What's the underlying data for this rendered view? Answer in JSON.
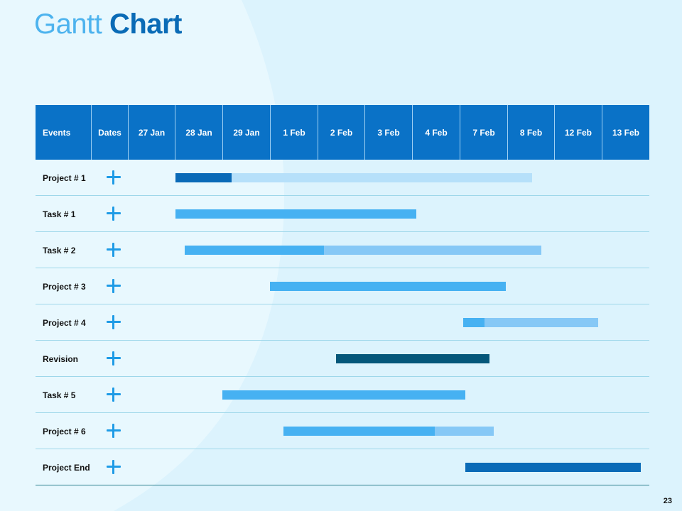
{
  "title": {
    "light": "Gantt",
    "bold": "Chart"
  },
  "page_number": "23",
  "colors": {
    "background": "#dcf3fd",
    "header": "#0a72c7",
    "plus_icon": "#1e9be6"
  },
  "chart_data": {
    "type": "gantt",
    "columns": [
      "Events",
      "Dates",
      "27 Jan",
      "28 Jan",
      "29 Jan",
      "1 Feb",
      "2 Feb",
      "3 Feb",
      "4 Feb",
      "7 Feb",
      "8 Feb",
      "12 Feb",
      "13 Feb"
    ],
    "date_columns": [
      "27 Jan",
      "28 Jan",
      "29 Jan",
      "1 Feb",
      "2 Feb",
      "3 Feb",
      "4 Feb",
      "7 Feb",
      "8 Feb",
      "12 Feb",
      "13 Feb"
    ],
    "rows": [
      {
        "label": "Project # 1",
        "segments": [
          {
            "start": 1.0,
            "end": 2.2,
            "color": "#0a6ab7"
          },
          {
            "start": 2.2,
            "end": 8.55,
            "color": "#b6e0fa"
          }
        ]
      },
      {
        "label": "Task # 1",
        "segments": [
          {
            "start": 1.0,
            "end": 6.1,
            "color": "#46b1f2"
          }
        ]
      },
      {
        "label": "Task # 2",
        "segments": [
          {
            "start": 1.2,
            "end": 4.15,
            "color": "#46b1f2"
          },
          {
            "start": 4.15,
            "end": 8.75,
            "color": "#86c8f6"
          }
        ]
      },
      {
        "label": "Project # 3",
        "segments": [
          {
            "start": 3.0,
            "end": 8.0,
            "color": "#46b1f2"
          }
        ]
      },
      {
        "label": "Project # 4",
        "segments": [
          {
            "start": 7.1,
            "end": 7.55,
            "color": "#46b1f2"
          },
          {
            "start": 7.55,
            "end": 9.95,
            "color": "#86c8f6"
          }
        ]
      },
      {
        "label": "Revision",
        "segments": [
          {
            "start": 4.4,
            "end": 7.65,
            "color": "#05577a"
          }
        ]
      },
      {
        "label": "Task # 5",
        "segments": [
          {
            "start": 2.0,
            "end": 7.15,
            "color": "#46b1f2"
          }
        ]
      },
      {
        "label": "Project # 6",
        "segments": [
          {
            "start": 3.3,
            "end": 6.5,
            "color": "#46b1f2"
          },
          {
            "start": 6.5,
            "end": 7.75,
            "color": "#86c8f6"
          }
        ]
      },
      {
        "label": "Project End",
        "segments": [
          {
            "start": 7.15,
            "end": 10.85,
            "color": "#0a6ab7"
          }
        ]
      }
    ]
  }
}
